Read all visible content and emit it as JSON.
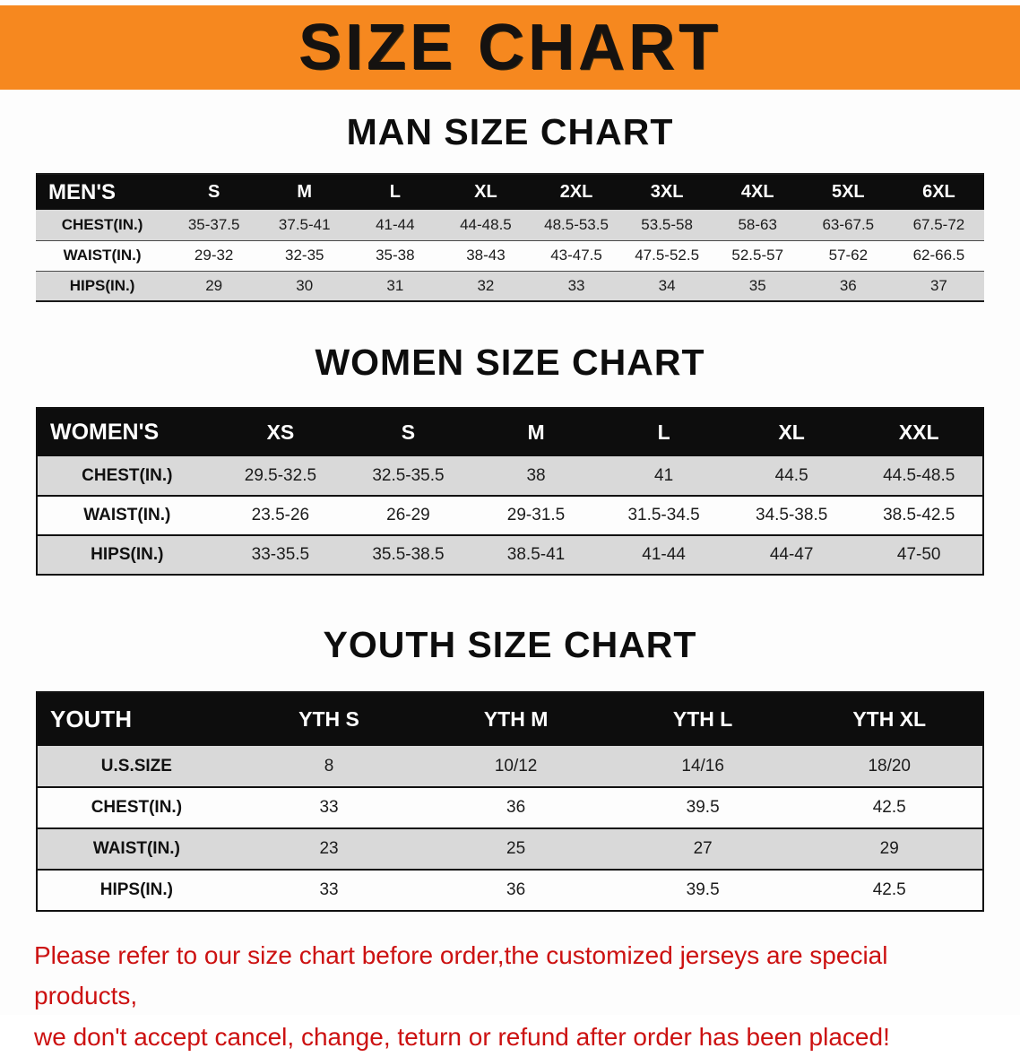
{
  "colors": {
    "banner_bg": "#f6881f",
    "header_bg": "#0d0d0d",
    "row_shade": "#d9d9d9",
    "footer_text": "#cc1111"
  },
  "banner": {
    "title": "SIZE CHART"
  },
  "sections": [
    {
      "heading": "MAN SIZE CHART",
      "table": {
        "label": "MEN'S",
        "columns": [
          "S",
          "M",
          "L",
          "XL",
          "2XL",
          "3XL",
          "4XL",
          "5XL",
          "6XL"
        ],
        "rows": [
          {
            "label": "CHEST(IN.)",
            "values": [
              "35-37.5",
              "37.5-41",
              "41-44",
              "44-48.5",
              "48.5-53.5",
              "53.5-58",
              "58-63",
              "63-67.5",
              "67.5-72"
            ]
          },
          {
            "label": "WAIST(IN.)",
            "values": [
              "29-32",
              "32-35",
              "35-38",
              "38-43",
              "43-47.5",
              "47.5-52.5",
              "52.5-57",
              "57-62",
              "62-66.5"
            ]
          },
          {
            "label": "HIPS(IN.)",
            "values": [
              "29",
              "30",
              "31",
              "32",
              "33",
              "34",
              "35",
              "36",
              "37"
            ]
          }
        ]
      }
    },
    {
      "heading": "WOMEN SIZE CHART",
      "table": {
        "label": "WOMEN'S",
        "columns": [
          "XS",
          "S",
          "M",
          "L",
          "XL",
          "XXL"
        ],
        "rows": [
          {
            "label": "CHEST(IN.)",
            "values": [
              "29.5-32.5",
              "32.5-35.5",
              "38",
              "41",
              "44.5",
              "44.5-48.5"
            ]
          },
          {
            "label": "WAIST(IN.)",
            "values": [
              "23.5-26",
              "26-29",
              "29-31.5",
              "31.5-34.5",
              "34.5-38.5",
              "38.5-42.5"
            ]
          },
          {
            "label": "HIPS(IN.)",
            "values": [
              "33-35.5",
              "35.5-38.5",
              "38.5-41",
              "41-44",
              "44-47",
              "47-50"
            ]
          }
        ]
      }
    },
    {
      "heading": "YOUTH SIZE CHART",
      "table": {
        "label": "YOUTH",
        "columns": [
          "YTH S",
          "YTH M",
          "YTH L",
          "YTH XL"
        ],
        "rows": [
          {
            "label": "U.S.SIZE",
            "values": [
              "8",
              "10/12",
              "14/16",
              "18/20"
            ]
          },
          {
            "label": "CHEST(IN.)",
            "values": [
              "33",
              "36",
              "39.5",
              "42.5"
            ]
          },
          {
            "label": "WAIST(IN.)",
            "values": [
              "23",
              "25",
              "27",
              "29"
            ]
          },
          {
            "label": "HIPS(IN.)",
            "values": [
              "33",
              "36",
              "39.5",
              "42.5"
            ]
          }
        ]
      }
    }
  ],
  "footer": {
    "line1": "Please refer to our size chart before order,the customized jerseys are special products,",
    "line2": "we don't accept cancel, change, teturn or refund after order has been placed!"
  }
}
